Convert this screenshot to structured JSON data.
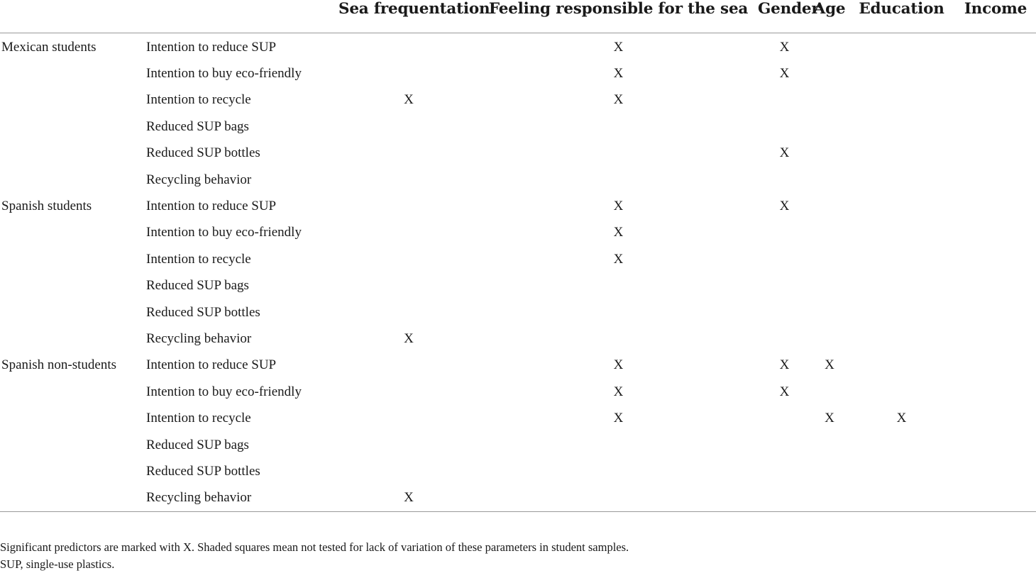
{
  "table": {
    "columns": [
      "",
      "",
      "Sea frequentation",
      "Feeling responsible for the sea",
      "Gender",
      "Age",
      "Education",
      "Income"
    ],
    "rows": [
      {
        "group": "Mexican students",
        "outcome": "Intention to reduce SUP",
        "marks": [
          "",
          "X",
          "X",
          "",
          "",
          ""
        ]
      },
      {
        "group": "",
        "outcome": "Intention to buy eco-friendly",
        "marks": [
          "",
          "X",
          "X",
          "",
          "",
          ""
        ]
      },
      {
        "group": "",
        "outcome": "Intention to recycle",
        "marks": [
          "X",
          "X",
          "",
          "",
          "",
          ""
        ]
      },
      {
        "group": "",
        "outcome": "Reduced SUP bags",
        "marks": [
          "",
          "",
          "",
          "",
          "",
          ""
        ]
      },
      {
        "group": "",
        "outcome": "Reduced SUP bottles",
        "marks": [
          "",
          "",
          "X",
          "",
          "",
          ""
        ]
      },
      {
        "group": "",
        "outcome": "Recycling behavior",
        "marks": [
          "",
          "",
          "",
          "",
          "",
          ""
        ]
      },
      {
        "group": "Spanish students",
        "outcome": "Intention to reduce SUP",
        "marks": [
          "",
          "X",
          "X",
          "",
          "",
          ""
        ]
      },
      {
        "group": "",
        "outcome": "Intention to buy eco-friendly",
        "marks": [
          "",
          "X",
          "",
          "",
          "",
          ""
        ]
      },
      {
        "group": "",
        "outcome": "Intention to recycle",
        "marks": [
          "",
          "X",
          "",
          "",
          "",
          ""
        ]
      },
      {
        "group": "",
        "outcome": "Reduced SUP bags",
        "marks": [
          "",
          "",
          "",
          "",
          "",
          ""
        ]
      },
      {
        "group": "",
        "outcome": "Reduced SUP bottles",
        "marks": [
          "",
          "",
          "",
          "",
          "",
          ""
        ]
      },
      {
        "group": "",
        "outcome": "Recycling behavior",
        "marks": [
          "X",
          "",
          "",
          "",
          "",
          ""
        ]
      },
      {
        "group": "Spanish non-students",
        "outcome": "Intention to reduce SUP",
        "marks": [
          "",
          "X",
          "X",
          "X",
          "",
          ""
        ]
      },
      {
        "group": "",
        "outcome": "Intention to buy eco-friendly",
        "marks": [
          "",
          "X",
          "X",
          "",
          "",
          ""
        ]
      },
      {
        "group": "",
        "outcome": "Intention to recycle",
        "marks": [
          "",
          "X",
          "",
          "X",
          "X",
          ""
        ]
      },
      {
        "group": "",
        "outcome": "Reduced SUP bags",
        "marks": [
          "",
          "",
          "",
          "",
          "",
          ""
        ]
      },
      {
        "group": "",
        "outcome": "Reduced SUP bottles",
        "marks": [
          "",
          "",
          "",
          "",
          "",
          ""
        ]
      },
      {
        "group": "",
        "outcome": "Recycling behavior",
        "marks": [
          "X",
          "",
          "",
          "",
          "",
          ""
        ]
      }
    ]
  },
  "footnotes": [
    "Significant predictors are marked with X. Shaded squares mean not tested for lack of variation of these parameters in student samples.",
    "SUP, single-use plastics."
  ]
}
